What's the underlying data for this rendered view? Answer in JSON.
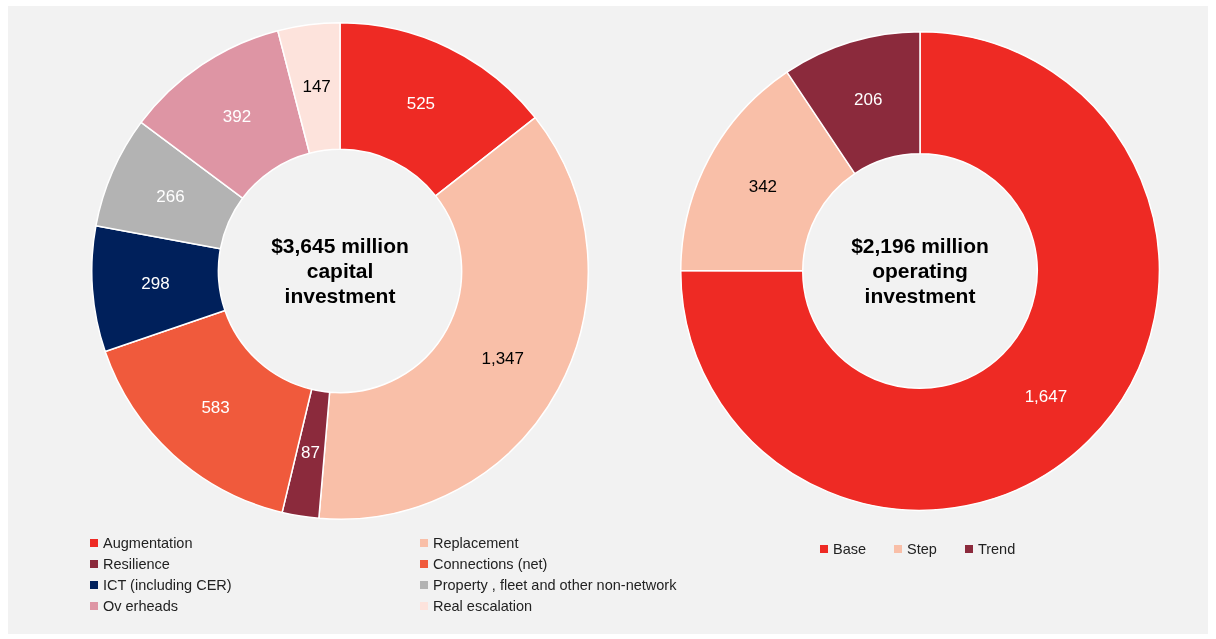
{
  "chart_data": [
    {
      "type": "donut",
      "title": "$3,645 million capital investment",
      "categories": [
        "Augmentation",
        "Replacement",
        "Resilience",
        "Connections (net)",
        "ICT (including CER)",
        "Property , fleet and other non-network",
        "Ov erheads",
        "Real escalation"
      ],
      "values": [
        525,
        1347,
        87,
        583,
        298,
        266,
        392,
        147
      ],
      "colors": [
        "#ee2a24",
        "#f9bfa8",
        "#8b2a3c",
        "#f05a3c",
        "#00205b",
        "#b3b3b3",
        "#de95a4",
        "#fde3dc"
      ],
      "value_labels": [
        "525",
        "1,347",
        "87",
        "583",
        "298",
        "266",
        "392",
        "147"
      ],
      "legend": "bottom"
    },
    {
      "type": "donut",
      "title": "$2,196 million operating investment",
      "categories": [
        "Base",
        "Step",
        "Trend"
      ],
      "values": [
        1647,
        342,
        206
      ],
      "colors": [
        "#ee2a24",
        "#f9bfa8",
        "#8b2a3c"
      ],
      "value_labels": [
        "1,647",
        "342",
        "206"
      ],
      "legend": "bottom"
    }
  ]
}
